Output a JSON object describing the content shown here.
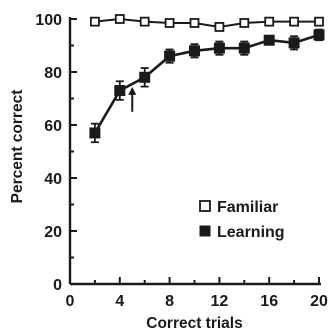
{
  "chart_data": {
    "type": "line",
    "xlabel": "Correct trials",
    "ylabel": "Percent correct",
    "xlim": [
      0,
      20
    ],
    "ylim": [
      0,
      100
    ],
    "xticks": [
      0,
      4,
      8,
      12,
      16,
      20
    ],
    "yticks": [
      0,
      20,
      40,
      60,
      80,
      100
    ],
    "grid": false,
    "legend_position": "bottom-right",
    "series": [
      {
        "name": "Familiar",
        "marker": "open-square",
        "x": [
          2,
          4,
          6,
          8,
          10,
          12,
          14,
          16,
          18,
          20
        ],
        "values": [
          99,
          100,
          99,
          98.5,
          98.5,
          97,
          98.5,
          99,
          99,
          99
        ]
      },
      {
        "name": "Learning",
        "marker": "filled-square",
        "x": [
          2,
          4,
          6,
          8,
          10,
          12,
          14,
          16,
          18,
          20
        ],
        "values": [
          57,
          73,
          78,
          86,
          88,
          89,
          89,
          92,
          91,
          94
        ],
        "errors": [
          3.5,
          3.5,
          3.5,
          2.5,
          2.5,
          2.5,
          2.5,
          1.5,
          2.5,
          2
        ]
      }
    ],
    "annotations": [
      {
        "type": "arrow",
        "x": 5,
        "y_from": 65,
        "y_to": 74
      }
    ]
  },
  "colors": {
    "ink": "#1a1a1a",
    "background": "#ffffff"
  }
}
